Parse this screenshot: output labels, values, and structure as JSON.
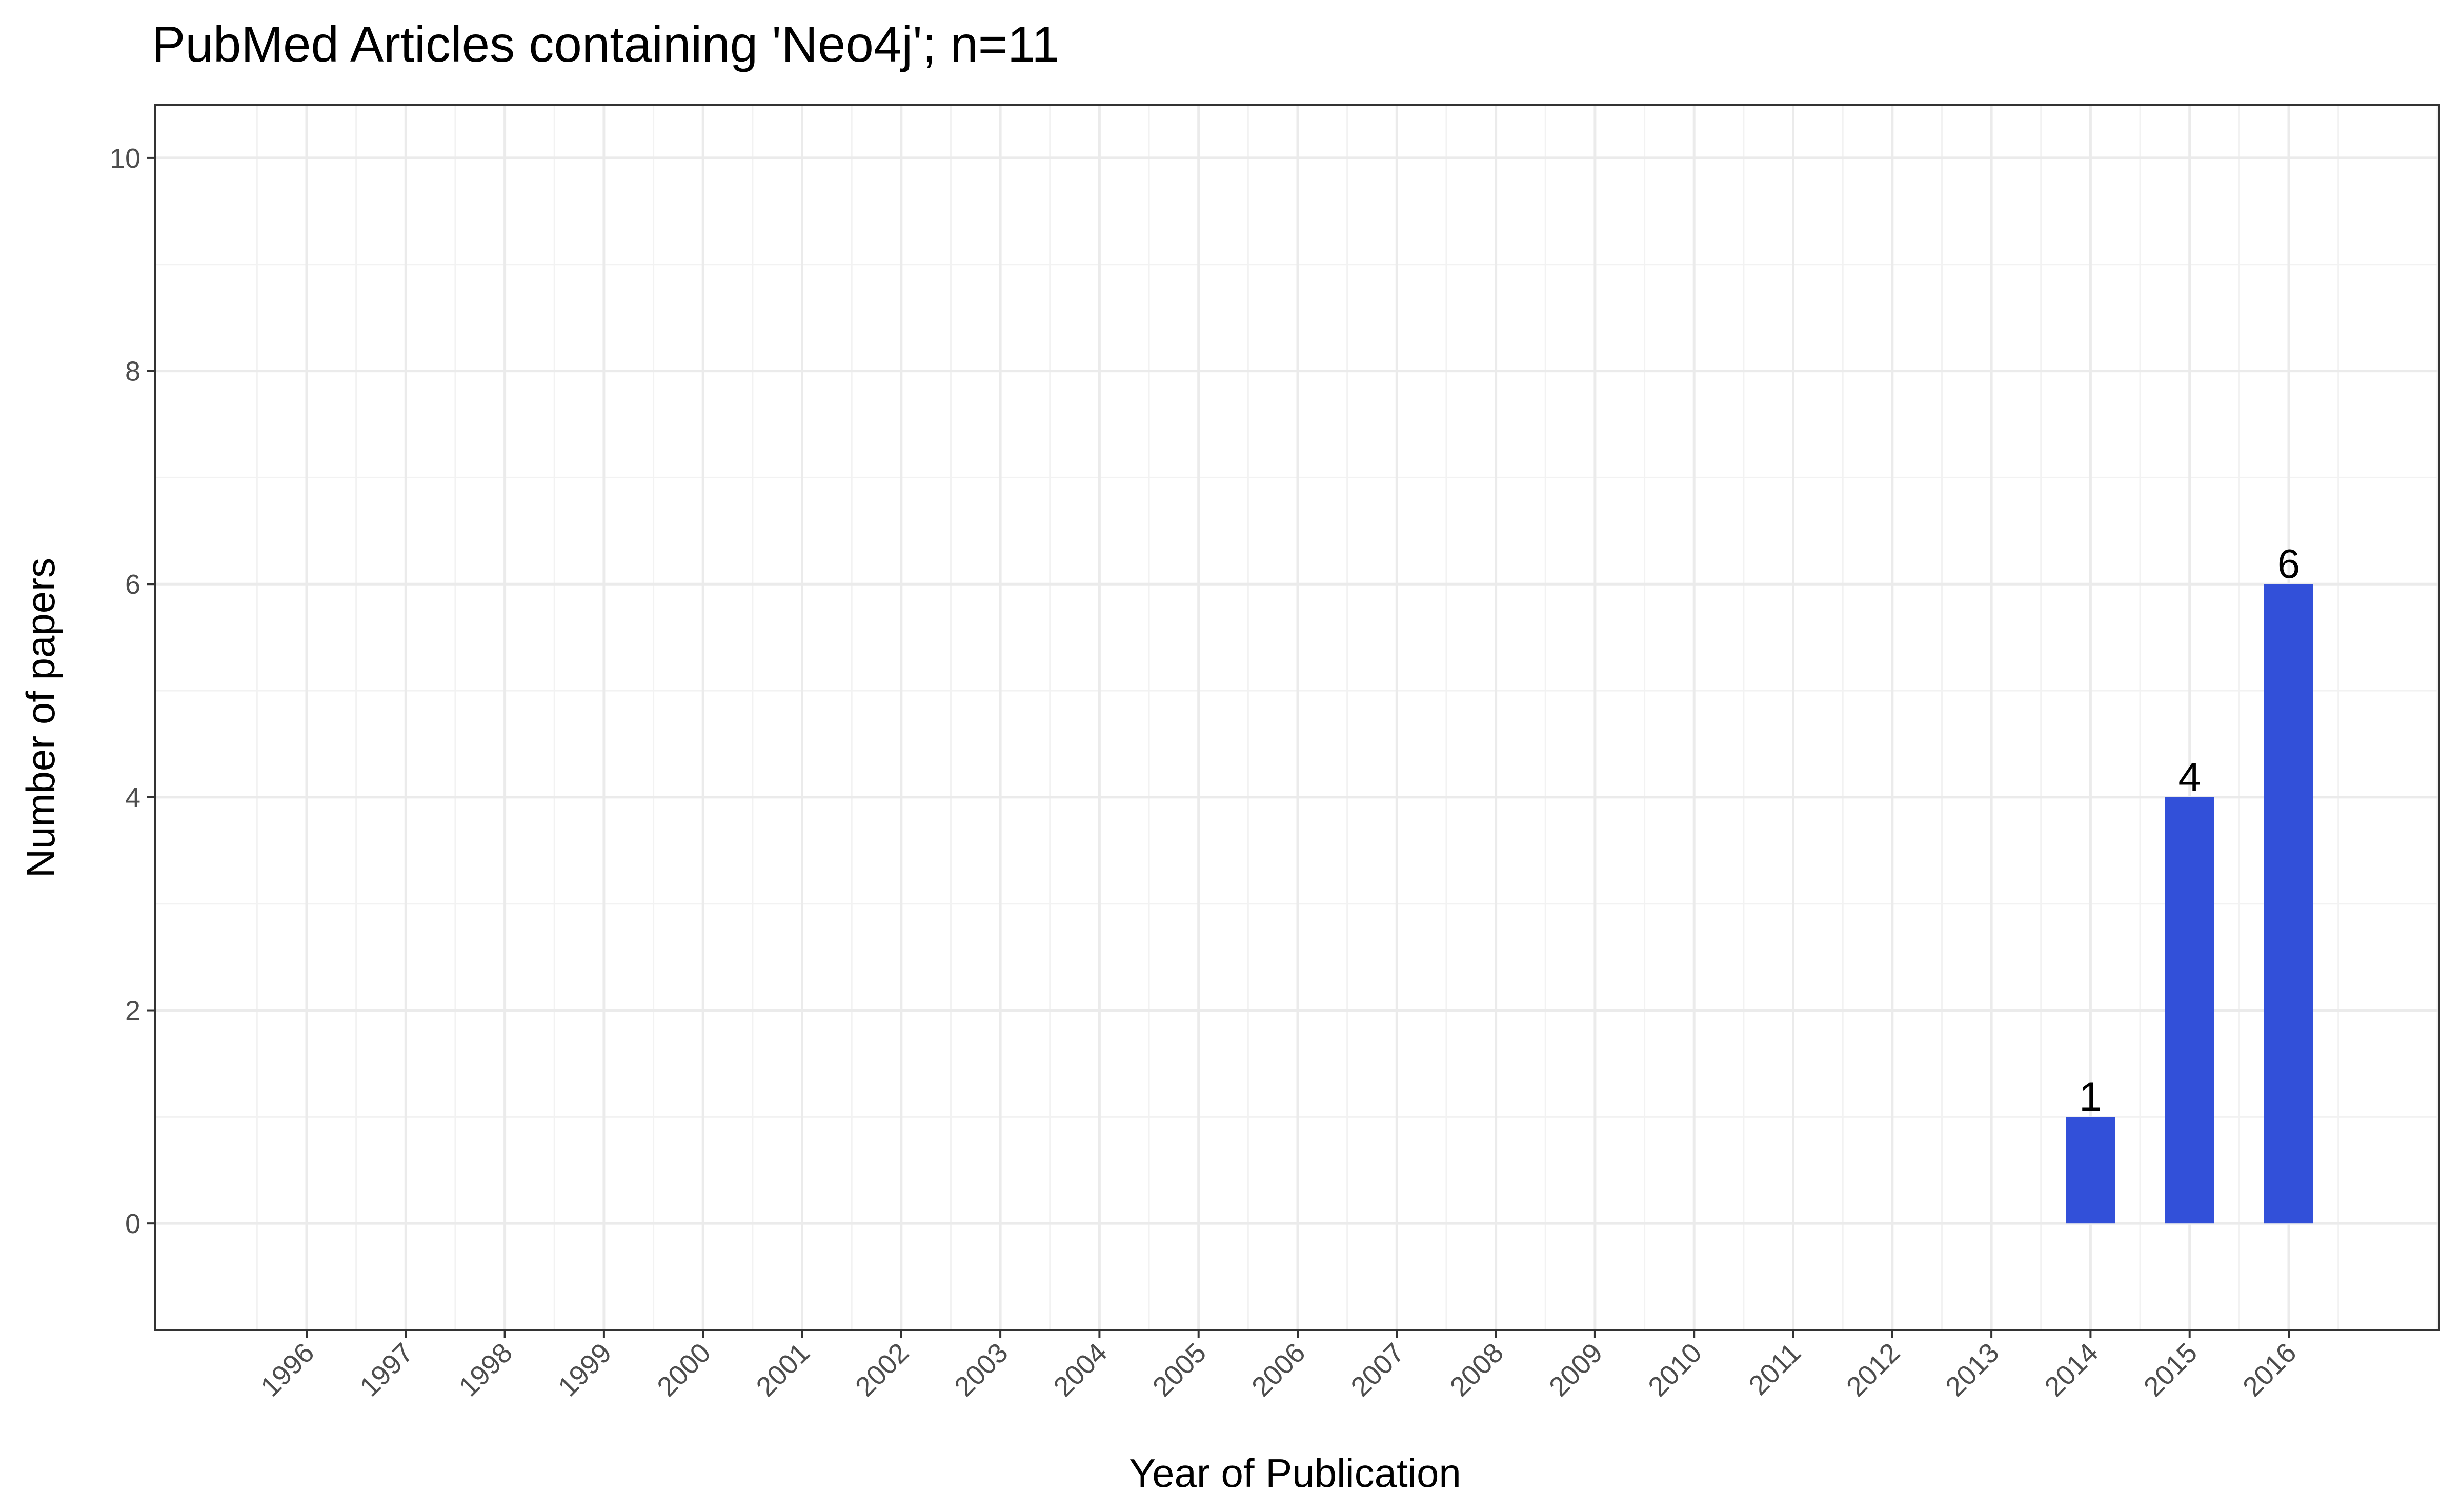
{
  "chart_data": {
    "type": "bar",
    "title": "PubMed Articles containing 'Neo4j'; n=11",
    "xlabel": "Year of Publication",
    "ylabel": "Number of papers",
    "categories": [
      "1996",
      "1997",
      "1998",
      "1999",
      "2000",
      "2001",
      "2002",
      "2003",
      "2004",
      "2005",
      "2006",
      "2007",
      "2008",
      "2009",
      "2010",
      "2011",
      "2012",
      "2013",
      "2014",
      "2015",
      "2016"
    ],
    "values": [
      0,
      0,
      0,
      0,
      0,
      0,
      0,
      0,
      0,
      0,
      0,
      0,
      0,
      0,
      0,
      0,
      0,
      0,
      1,
      4,
      6
    ],
    "bar_labels": [
      "",
      "",
      "",
      "",
      "",
      "",
      "",
      "",
      "",
      "",
      "",
      "",
      "",
      "",
      "",
      "",
      "",
      "",
      "1",
      "4",
      "6"
    ],
    "yticks": [
      "0",
      "2",
      "4",
      "6",
      "8",
      "10"
    ],
    "ylim": [
      -1,
      10.5
    ],
    "bar_color": "#3250D9",
    "grid": true,
    "legend": "none"
  }
}
